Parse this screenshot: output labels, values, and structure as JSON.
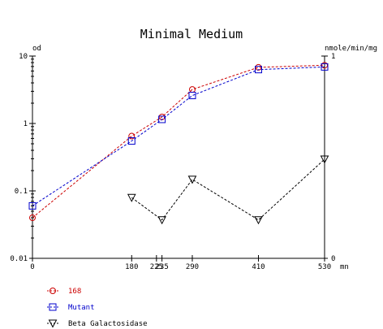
{
  "chart_data": {
    "type": "line",
    "title": "Minimal Medium",
    "xlabel": "mn",
    "ylabel_left": "od",
    "ylabel_right": "nmole/min/mg",
    "x_ticks": [
      "0",
      "180",
      "225",
      "235",
      "290",
      "410",
      "530"
    ],
    "xlim": [
      0,
      530
    ],
    "y_left_scale": "log",
    "y_left_ticks": [
      "0.01",
      "0.1",
      "1",
      "10"
    ],
    "ylim_left": [
      0.01,
      10
    ],
    "y_right_ticks": [
      "0",
      "1"
    ],
    "ylim_right": [
      0,
      1
    ],
    "grid": false,
    "legend_position": "bottom-left",
    "series": [
      {
        "name": "168",
        "axis": "left",
        "color": "#cc0000",
        "marker": "circle",
        "line_style": "dashed",
        "x": [
          0,
          180,
          235,
          290,
          410,
          530
        ],
        "y": [
          0.04,
          0.65,
          1.25,
          3.2,
          6.8,
          7.3
        ]
      },
      {
        "name": "Mutant",
        "axis": "left",
        "color": "#0000cc",
        "marker": "square",
        "line_style": "dashed",
        "x": [
          0,
          180,
          235,
          290,
          410,
          530
        ],
        "y": [
          0.06,
          0.55,
          1.15,
          2.6,
          6.3,
          6.9
        ]
      },
      {
        "name": "Beta Galactosidase",
        "axis": "right",
        "color": "#000000",
        "marker": "triangle-down",
        "line_style": "dashed",
        "x": [
          180,
          235,
          290,
          410,
          530
        ],
        "y": [
          0.3,
          0.19,
          0.39,
          0.19,
          0.49
        ]
      }
    ]
  }
}
